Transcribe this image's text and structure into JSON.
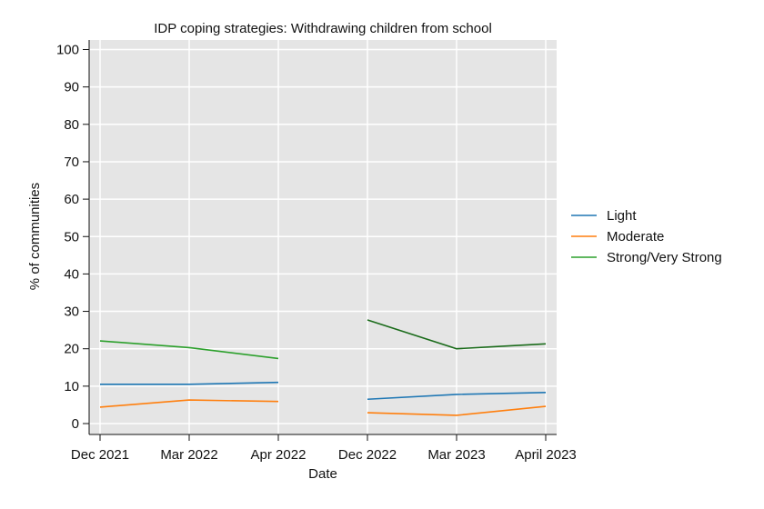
{
  "chart_data": {
    "type": "line",
    "title": "IDP coping strategies: Withdrawing children from school",
    "xlabel": "Date",
    "ylabel": "% of communities",
    "categories": [
      "Dec 2021",
      "Mar 2022",
      "Apr 2022",
      "Dec 2022",
      "Mar 2023",
      "April 2023"
    ],
    "y_ticks": [
      "0",
      "10",
      "20",
      "30",
      "40",
      "50",
      "60",
      "70",
      "80",
      "90",
      "100"
    ],
    "ylim": [
      0,
      100
    ],
    "grid": true,
    "legend_position": "right",
    "series": [
      {
        "name": "Light",
        "color": "#1f77b4",
        "segments": [
          {
            "categories": [
              "Dec 2021",
              "Mar 2022",
              "Apr 2022"
            ],
            "values": [
              10.5,
              10.5,
              11.0
            ]
          },
          {
            "categories": [
              "Dec 2022",
              "Mar 2023",
              "April 2023"
            ],
            "values": [
              6.5,
              7.8,
              8.3
            ]
          }
        ]
      },
      {
        "name": "Moderate",
        "color": "#ff7f0e",
        "segments": [
          {
            "categories": [
              "Dec 2021",
              "Mar 2022",
              "Apr 2022"
            ],
            "values": [
              4.4,
              6.3,
              5.9
            ]
          },
          {
            "categories": [
              "Dec 2022",
              "Mar 2023",
              "April 2023"
            ],
            "values": [
              2.9,
              2.2,
              4.6
            ]
          }
        ]
      },
      {
        "name": "Strong/Very Strong",
        "color": "#2ca02c",
        "segments": [
          {
            "categories": [
              "Dec 2021",
              "Mar 2022",
              "Apr 2022"
            ],
            "values": [
              22.1,
              20.3,
              17.4
            ],
            "color": "#2ca02c"
          },
          {
            "categories": [
              "Dec 2022",
              "Mar 2023",
              "April 2023"
            ],
            "values": [
              27.7,
              20.0,
              21.3
            ],
            "color": "#1a6b1a"
          }
        ]
      }
    ],
    "colors": {
      "plot_background": "#e5e5e5",
      "grid": "#ffffff",
      "axis": "#111111"
    }
  }
}
